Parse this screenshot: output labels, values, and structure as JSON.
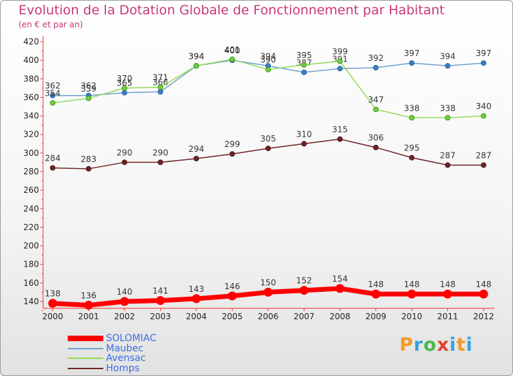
{
  "chart_data": {
    "type": "line",
    "title": "Evolution de la Dotation Globale de Fonctionnement par Habitant",
    "subtitle": "(en € et par an)",
    "xlabel": "",
    "ylabel": "",
    "categories": [
      "2000",
      "2001",
      "2002",
      "2003",
      "2004",
      "2005",
      "2006",
      "2007",
      "2008",
      "2009",
      "2010",
      "2011",
      "2012"
    ],
    "ylim": [
      120,
      420
    ],
    "yticks": [
      140,
      160,
      180,
      200,
      220,
      240,
      260,
      280,
      300,
      320,
      340,
      360,
      380,
      400,
      420
    ],
    "grid": false,
    "legend_position": "bottom-left",
    "series": [
      {
        "name": "SOLOMIAC",
        "color": "#ff0000",
        "values": [
          138,
          136,
          140,
          141,
          143,
          146,
          150,
          152,
          154,
          148,
          148,
          148,
          148
        ]
      },
      {
        "name": "Maubec",
        "color": "#6fa0cf",
        "values": [
          362,
          362,
          365,
          366,
          394,
          400,
          394,
          387,
          391,
          392,
          397,
          394,
          397
        ],
        "labels": [
          "362",
          "362",
          "365",
          "366",
          "394",
          "400",
          "394",
          "387",
          "391",
          "392",
          "397",
          "394",
          "397"
        ]
      },
      {
        "name": "Avensac",
        "color": "#8fdc5a",
        "values": [
          354,
          359,
          370,
          371,
          394,
          401,
          390,
          395,
          399,
          347,
          338,
          338,
          340
        ]
      },
      {
        "name": "Homps",
        "color": "#6e2426",
        "values": [
          284,
          283,
          290,
          290,
          294,
          299,
          305,
          310,
          315,
          306,
          295,
          287,
          287
        ]
      }
    ]
  },
  "legend": [
    "SOLOMIAC",
    "Maubec",
    "Avensac",
    "Homps"
  ],
  "logo": {
    "p": "P",
    "r": "r",
    "o": "o",
    "x": "x",
    "i": "i",
    "t": "t",
    "i2": "i"
  }
}
